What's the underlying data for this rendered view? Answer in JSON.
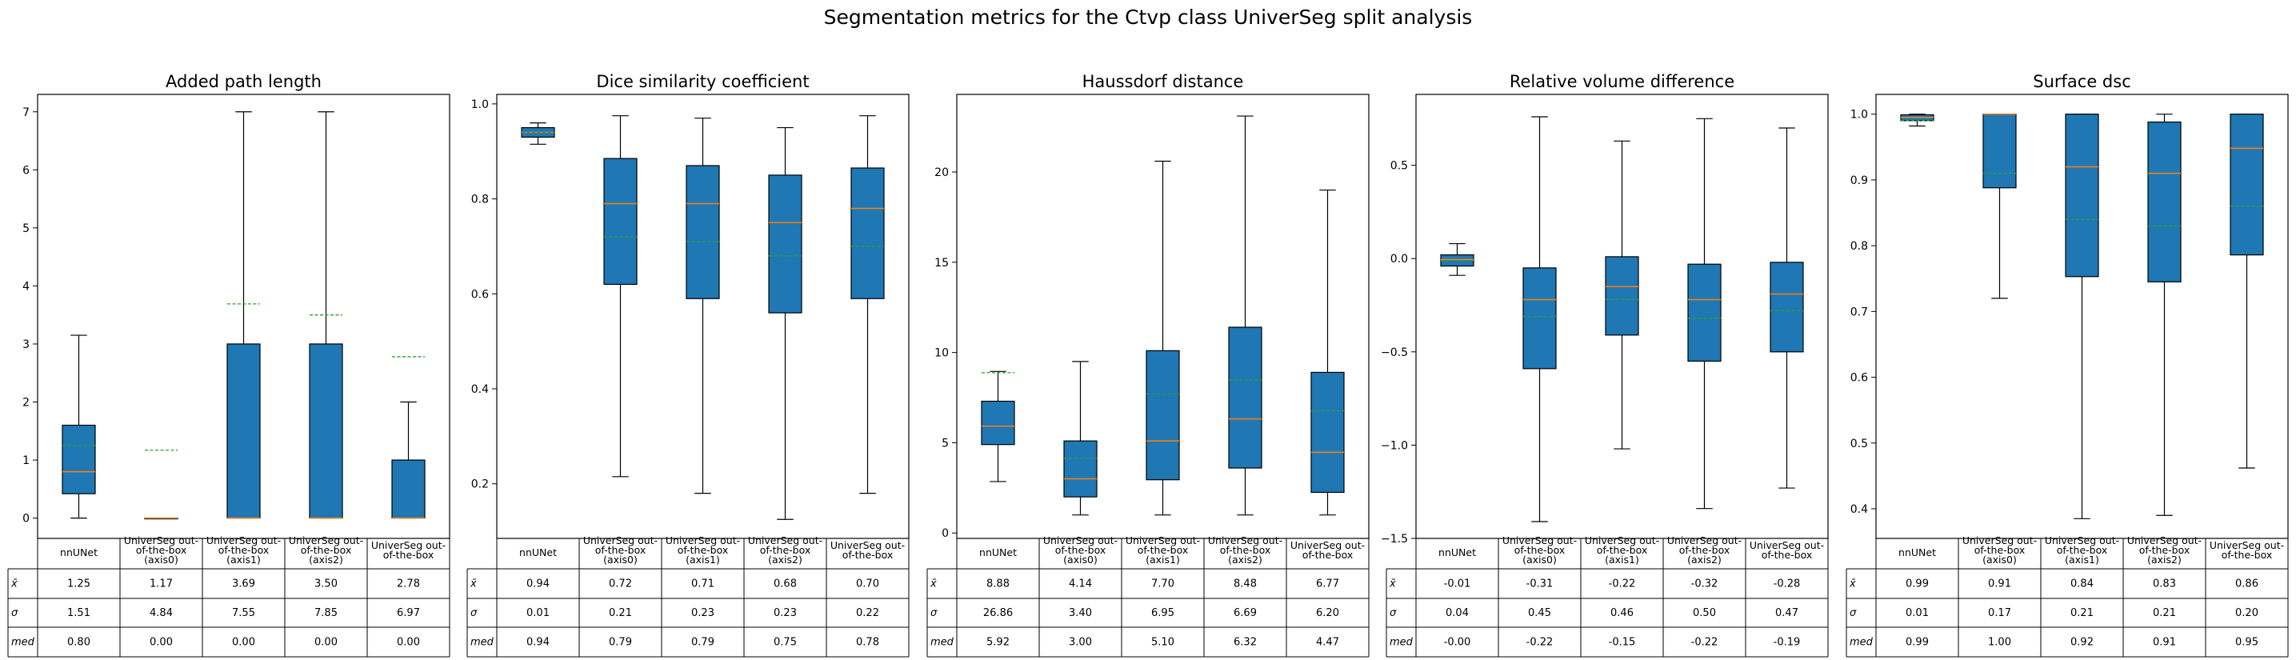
{
  "figure": {
    "title": "Segmentation metrics for the Ctvp class UniverSeg split analysis"
  },
  "colors": {
    "box_fill": "#1f77b4",
    "median": "#ff7f0e",
    "mean": "#2ca02c",
    "ink": "#000000",
    "background": "#ffffff"
  },
  "table": {
    "row_labels": [
      "x̄",
      "σ",
      "med"
    ],
    "columns": [
      [
        "nnUNet"
      ],
      [
        "UniverSeg out-",
        "of-the-box",
        "(axis0)"
      ],
      [
        "UniverSeg out-",
        "of-the-box",
        "(axis1)"
      ],
      [
        "UniverSeg out-",
        "of-the-box",
        "(axis2)"
      ],
      [
        "UniverSeg out-",
        "of-the-box"
      ]
    ]
  },
  "chart_data": [
    {
      "type": "box",
      "title": "Added path length",
      "ylim": [
        -0.35,
        7.3
      ],
      "yticks": [
        0,
        1,
        2,
        3,
        4,
        5,
        6,
        7
      ],
      "yticklabels": [
        "0",
        "1",
        "2",
        "3",
        "4",
        "5",
        "6",
        "7"
      ],
      "boxes": [
        {
          "whislo": 0.0,
          "q1": 0.42,
          "med": 0.8,
          "q3": 1.6,
          "whishi": 3.15,
          "mean": 1.25
        },
        {
          "whislo": 0.0,
          "q1": 0.0,
          "med": 0.0,
          "q3": 0.0,
          "whishi": 0.0,
          "mean": 1.17
        },
        {
          "whislo": 0.0,
          "q1": 0.0,
          "med": 0.0,
          "q3": 3.0,
          "whishi": 7.0,
          "mean": 3.69
        },
        {
          "whislo": 0.0,
          "q1": 0.0,
          "med": 0.0,
          "q3": 3.0,
          "whishi": 7.0,
          "mean": 3.5
        },
        {
          "whislo": 0.0,
          "q1": 0.0,
          "med": 0.0,
          "q3": 1.0,
          "whishi": 2.0,
          "mean": 2.78
        }
      ],
      "stats": [
        [
          "1.25",
          "1.17",
          "3.69",
          "3.50",
          "2.78"
        ],
        [
          "1.51",
          "4.84",
          "7.55",
          "7.85",
          "6.97"
        ],
        [
          "0.80",
          "0.00",
          "0.00",
          "0.00",
          "0.00"
        ]
      ]
    },
    {
      "type": "box",
      "title": "Dice similarity coefficient",
      "ylim": [
        0.085,
        1.02
      ],
      "yticks": [
        0.2,
        0.4,
        0.6,
        0.8,
        1.0
      ],
      "yticklabels": [
        "0.2",
        "0.4",
        "0.6",
        "0.8",
        "1.0"
      ],
      "boxes": [
        {
          "whislo": 0.915,
          "q1": 0.93,
          "med": 0.94,
          "q3": 0.95,
          "whishi": 0.96,
          "mean": 0.94
        },
        {
          "whislo": 0.215,
          "q1": 0.62,
          "med": 0.79,
          "q3": 0.885,
          "whishi": 0.975,
          "mean": 0.72
        },
        {
          "whislo": 0.18,
          "q1": 0.59,
          "med": 0.79,
          "q3": 0.87,
          "whishi": 0.97,
          "mean": 0.71
        },
        {
          "whislo": 0.125,
          "q1": 0.56,
          "med": 0.75,
          "q3": 0.85,
          "whishi": 0.95,
          "mean": 0.68
        },
        {
          "whislo": 0.18,
          "q1": 0.59,
          "med": 0.78,
          "q3": 0.865,
          "whishi": 0.975,
          "mean": 0.7
        }
      ],
      "stats": [
        [
          "0.94",
          "0.72",
          "0.71",
          "0.68",
          "0.70"
        ],
        [
          "0.01",
          "0.21",
          "0.23",
          "0.23",
          "0.22"
        ],
        [
          "0.94",
          "0.79",
          "0.79",
          "0.75",
          "0.78"
        ]
      ]
    },
    {
      "type": "box",
      "title": "Haussdorf distance",
      "ylim": [
        -0.3,
        24.3
      ],
      "yticks": [
        0,
        5,
        10,
        15,
        20
      ],
      "yticklabels": [
        "0",
        "5",
        "10",
        "15",
        "20"
      ],
      "boxes": [
        {
          "whislo": 2.85,
          "q1": 4.9,
          "med": 5.92,
          "q3": 7.3,
          "whishi": 8.95,
          "mean": 8.88
        },
        {
          "whislo": 1.0,
          "q1": 2.0,
          "med": 3.0,
          "q3": 5.1,
          "whishi": 9.5,
          "mean": 4.14
        },
        {
          "whislo": 1.0,
          "q1": 2.95,
          "med": 5.1,
          "q3": 10.1,
          "whishi": 20.6,
          "mean": 7.7
        },
        {
          "whislo": 1.0,
          "q1": 3.6,
          "med": 6.32,
          "q3": 11.4,
          "whishi": 23.1,
          "mean": 8.48
        },
        {
          "whislo": 1.0,
          "q1": 2.25,
          "med": 4.47,
          "q3": 8.9,
          "whishi": 19.0,
          "mean": 6.77
        }
      ],
      "stats": [
        [
          "8.88",
          "4.14",
          "7.70",
          "8.48",
          "6.77"
        ],
        [
          "26.86",
          "3.40",
          "6.95",
          "6.69",
          "6.20"
        ],
        [
          "5.92",
          "3.00",
          "5.10",
          "6.32",
          "4.47"
        ]
      ]
    },
    {
      "type": "box",
      "title": "Relative volume difference",
      "ylim": [
        -1.5,
        0.88
      ],
      "yticks": [
        -1.5,
        -1.0,
        -0.5,
        0.0,
        0.5
      ],
      "yticklabels": [
        "−1.5",
        "−1.0",
        "−0.5",
        "0.0",
        "0.5"
      ],
      "boxes": [
        {
          "whislo": -0.09,
          "q1": -0.04,
          "med": -0.005,
          "q3": 0.02,
          "whishi": 0.08,
          "mean": -0.01
        },
        {
          "whislo": -1.41,
          "q1": -0.59,
          "med": -0.22,
          "q3": -0.05,
          "whishi": 0.76,
          "mean": -0.31
        },
        {
          "whislo": -1.02,
          "q1": -0.41,
          "med": -0.15,
          "q3": 0.01,
          "whishi": 0.63,
          "mean": -0.22
        },
        {
          "whislo": -1.34,
          "q1": -0.55,
          "med": -0.22,
          "q3": -0.03,
          "whishi": 0.75,
          "mean": -0.32
        },
        {
          "whislo": -1.23,
          "q1": -0.5,
          "med": -0.19,
          "q3": -0.02,
          "whishi": 0.7,
          "mean": -0.28
        }
      ],
      "stats": [
        [
          "-0.01",
          "-0.31",
          "-0.22",
          "-0.32",
          "-0.28"
        ],
        [
          "0.04",
          "0.45",
          "0.46",
          "0.50",
          "0.47"
        ],
        [
          "-0.00",
          "-0.22",
          "-0.15",
          "-0.22",
          "-0.19"
        ]
      ]
    },
    {
      "type": "box",
      "title": "Surface dsc",
      "ylim": [
        0.355,
        1.03
      ],
      "yticks": [
        0.4,
        0.5,
        0.6,
        0.7,
        0.8,
        0.9,
        1.0
      ],
      "yticklabels": [
        "0.4",
        "0.5",
        "0.6",
        "0.7",
        "0.8",
        "0.9",
        "1.0"
      ],
      "boxes": [
        {
          "whislo": 0.982,
          "q1": 0.99,
          "med": 0.995,
          "q3": 0.999,
          "whishi": 1.0,
          "mean": 0.99
        },
        {
          "whislo": 0.72,
          "q1": 0.888,
          "med": 1.0,
          "q3": 1.0,
          "whishi": 1.0,
          "mean": 0.91
        },
        {
          "whislo": 0.385,
          "q1": 0.753,
          "med": 0.92,
          "q3": 1.0,
          "whishi": 1.0,
          "mean": 0.84
        },
        {
          "whislo": 0.39,
          "q1": 0.745,
          "med": 0.91,
          "q3": 0.988,
          "whishi": 1.0,
          "mean": 0.83
        },
        {
          "whislo": 0.462,
          "q1": 0.786,
          "med": 0.948,
          "q3": 1.0,
          "whishi": 1.0,
          "mean": 0.86
        }
      ],
      "stats": [
        [
          "0.99",
          "0.91",
          "0.84",
          "0.83",
          "0.86"
        ],
        [
          "0.01",
          "0.17",
          "0.21",
          "0.21",
          "0.20"
        ],
        [
          "0.99",
          "1.00",
          "0.92",
          "0.91",
          "0.95"
        ]
      ]
    }
  ]
}
